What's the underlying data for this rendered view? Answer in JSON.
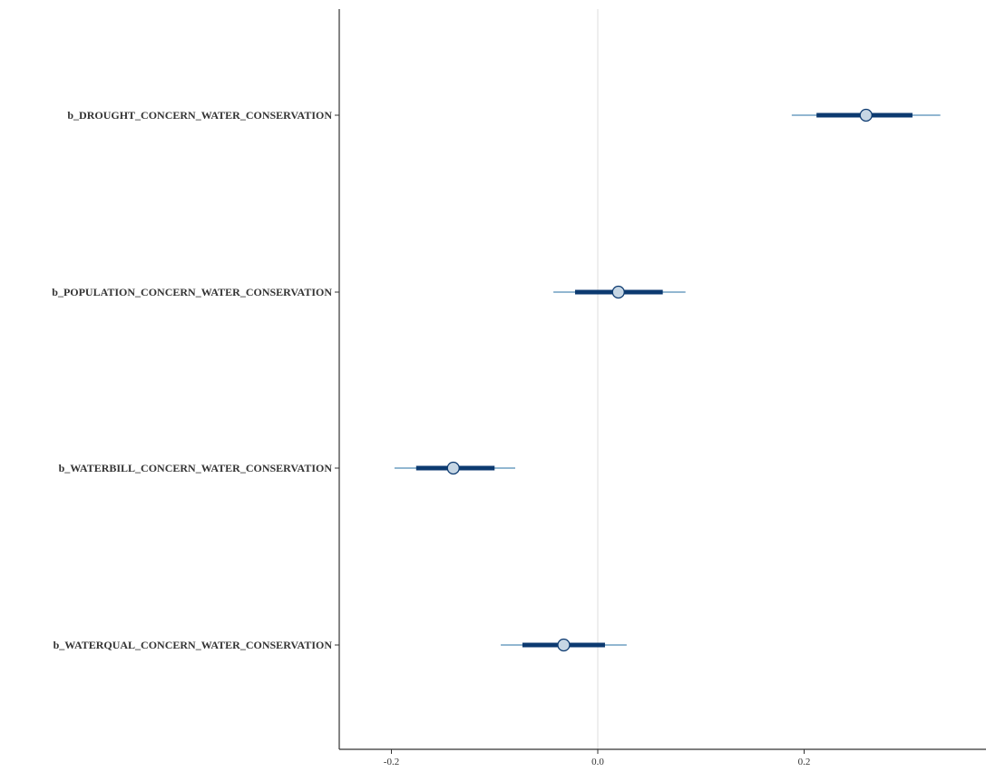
{
  "chart_data": {
    "type": "interval",
    "title": "",
    "xlabel": "",
    "ylabel": "",
    "xlim": [
      -0.25,
      0.38
    ],
    "x_ticks": [
      -0.2,
      0.0,
      0.2
    ],
    "x_tick_labels": [
      "-0.2",
      "0.0",
      "0.2"
    ],
    "reference_line": 0.0,
    "grid": false,
    "legend": "none",
    "parameters": [
      {
        "label": "b_DROUGHT_CONCERN_WATER_CONSERVATION",
        "estimate": 0.26,
        "inner": [
          0.212,
          0.305
        ],
        "outer": [
          0.188,
          0.332
        ]
      },
      {
        "label": "b_POPULATION_CONCERN_WATER_CONSERVATION",
        "estimate": 0.02,
        "inner": [
          -0.022,
          0.063
        ],
        "outer": [
          -0.043,
          0.085
        ]
      },
      {
        "label": "b_WATERBILL_CONCERN_WATER_CONSERVATION",
        "estimate": -0.14,
        "inner": [
          -0.176,
          -0.1
        ],
        "outer": [
          -0.197,
          -0.08
        ]
      },
      {
        "label": "b_WATERQUAL_CONCERN_WATER_CONSERVATION",
        "estimate": -0.033,
        "inner": [
          -0.073,
          0.007
        ],
        "outer": [
          -0.094,
          0.028
        ]
      }
    ],
    "colors": {
      "outer": "#6f9fc2",
      "inner": "#0c3a70",
      "point_fill": "#c6d6e4",
      "point_stroke": "#0c3a70",
      "reference": "#dddddd",
      "axis": "#333333"
    }
  }
}
